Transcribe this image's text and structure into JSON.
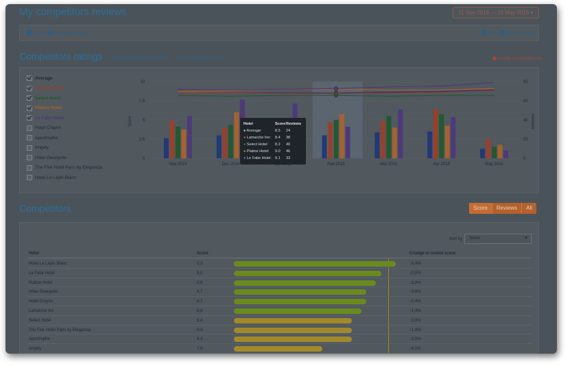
{
  "page": {
    "title": "My competitors reviews",
    "date_range": "11 Nov 2014 — 11 May 2015 ▾"
  },
  "toolbar": {
    "export": "Export",
    "schedule": "Schedule a report",
    "print": "Print",
    "send_email": "Send by email"
  },
  "ratings": {
    "title": "Competitors ratings",
    "read_reviews": "read competitors reviews",
    "topics_summary": "view topics summary",
    "modify_list": "modify competitors list",
    "hotels": [
      {
        "name": "Average",
        "checked": true,
        "color": "#1e2a33"
      },
      {
        "name": "Lamarche Inn",
        "checked": true,
        "color": "#9a3f2b"
      },
      {
        "name": "Select Hotel",
        "checked": true,
        "color": "#1f5a34"
      },
      {
        "name": "Platine Hotel",
        "checked": true,
        "color": "#a8612d"
      },
      {
        "name": "Le Fabe Hotel",
        "checked": true,
        "color": "#4c3a7c"
      },
      {
        "name": "Hotel Crayon",
        "checked": false,
        "color": "#1f2a33"
      },
      {
        "name": "Apostrophe",
        "checked": false,
        "color": "#1f2a33"
      },
      {
        "name": "Angely",
        "checked": false,
        "color": "#1f2a33"
      },
      {
        "name": "Hôtel Georgette",
        "checked": false,
        "color": "#1f2a33"
      },
      {
        "name": "The Five Hotel Paris by Elegancia",
        "checked": false,
        "color": "#1f2a33"
      },
      {
        "name": "Hotel Le Lapin Blanc",
        "checked": false,
        "color": "#1f2a33"
      }
    ]
  },
  "chart_data": {
    "type": "bar",
    "categories": [
      "Nov 2014",
      "Dec 2014",
      "Jan 2015",
      "Feb 2015",
      "Mar 2015",
      "Apr 2015",
      "May 2015"
    ],
    "ylabel": "Score",
    "y2label": "Reviews",
    "ylim": [
      0,
      10
    ],
    "y2lim": [
      0,
      80
    ],
    "yticks": [
      "0",
      "2.5",
      "5",
      "7.5",
      "10"
    ],
    "y2ticks": [
      "0",
      "20",
      "40",
      "60",
      "80"
    ],
    "series": [
      {
        "name": "Average",
        "color": "#1e3a78",
        "values": [
          21,
          24,
          22,
          24,
          27,
          28,
          10
        ]
      },
      {
        "name": "Lamarche Inn",
        "color": "#9a3f2b",
        "values": [
          39,
          32,
          41,
          38,
          39,
          51,
          20
        ]
      },
      {
        "name": "Select Hotel",
        "color": "#1f5a34",
        "values": [
          33,
          35,
          40,
          40,
          44,
          46,
          12
        ]
      },
      {
        "name": "Platine Hotel",
        "color": "#a8612d",
        "values": [
          30,
          48,
          35,
          46,
          32,
          34,
          14
        ]
      },
      {
        "name": "Le Fabe Hotel",
        "color": "#4c3a7c",
        "values": [
          44,
          61,
          57,
          33,
          51,
          43,
          8
        ]
      }
    ],
    "score_lines": [
      {
        "name": "Average",
        "color": "#2a2f78",
        "values": [
          8.4,
          8.5,
          8.5,
          8.5,
          8.6,
          8.7,
          8.9
        ]
      },
      {
        "name": "Lamarche Inn",
        "color": "#9a3f2b",
        "values": [
          8.4,
          8.5,
          8.4,
          8.4,
          8.5,
          8.6,
          8.8
        ]
      },
      {
        "name": "Select Hotel",
        "color": "#1f5a34",
        "values": [
          8.2,
          8.1,
          8.2,
          8.2,
          8.1,
          8.2,
          8.2
        ]
      },
      {
        "name": "Platine Hotel",
        "color": "#a8612d",
        "values": [
          8.7,
          8.8,
          9.0,
          9.0,
          8.9,
          8.9,
          9.1
        ]
      },
      {
        "name": "Le Fabe Hotel",
        "color": "#4c3a7c",
        "values": [
          9.0,
          8.9,
          9.0,
          9.1,
          9.3,
          9.4,
          9.9
        ]
      }
    ],
    "highlight_category": "Feb 2015"
  },
  "tooltip": {
    "headers": [
      "Hotel",
      "Score",
      "Reviews"
    ],
    "rows": [
      {
        "name": "Average:",
        "score": "8.5",
        "reviews": "24",
        "color": "#cfd3d6"
      },
      {
        "name": "Lamarche Inn:",
        "score": "8.4",
        "reviews": "38",
        "color": "#d0603a"
      },
      {
        "name": "Select Hotel:",
        "score": "8.2",
        "reviews": "40",
        "color": "#3b8a50"
      },
      {
        "name": "Platine Hotel:",
        "score": "9.0",
        "reviews": "46",
        "color": "#e08a3a"
      },
      {
        "name": "Le Fabe Hotel:",
        "score": "9.1",
        "reviews": "33",
        "color": "#8a6ad0"
      }
    ]
  },
  "competitors": {
    "title": "Competitors",
    "toggle": [
      "Score",
      "Reviews",
      "All"
    ],
    "active_toggle": "Score",
    "sort_label": "Sort by",
    "sort_value": "Score",
    "columns": [
      "Hotel",
      "Score",
      "Change in review score"
    ],
    "rows": [
      {
        "name": "Hotel Le Lapin Blanc",
        "score": "9,3",
        "score_value": 9.3,
        "change": "↑9,4%",
        "color": "#6b8a1e"
      },
      {
        "name": "Le Fabe Hotel",
        "score": "9,0",
        "score_value": 9.0,
        "change": "↓0,5%",
        "color": "#6b8a1e"
      },
      {
        "name": "Platine Hotel",
        "score": "8,9",
        "score_value": 8.9,
        "change": "↑3,9%",
        "color": "#6b8a1e"
      },
      {
        "name": "Hôtel Georgette",
        "score": "8,7",
        "score_value": 8.7,
        "change": "↑3,6%",
        "color": "#6b8a1e"
      },
      {
        "name": "Hotel Crayon",
        "score": "8,7",
        "score_value": 8.7,
        "change": "↓0,4%",
        "color": "#6b8a1e"
      },
      {
        "name": "Lamarche Inn",
        "score": "8,6",
        "score_value": 8.6,
        "change": "↑1,4%",
        "color": "#6b8a1e"
      },
      {
        "name": "Select Hotel",
        "score": "8,4",
        "score_value": 8.4,
        "change": "↑2,8%",
        "color": "#a08a2a"
      },
      {
        "name": "The Five Hotel Paris by Elegancia",
        "score": "8,4",
        "score_value": 8.4,
        "change": "↑1,9%",
        "color": "#a08a2a"
      },
      {
        "name": "Apostrophe",
        "score": "8,4",
        "score_value": 8.4,
        "change": "↓3,5%",
        "color": "#a08a2a"
      },
      {
        "name": "Angely",
        "score": "7,8",
        "score_value": 7.8,
        "change": "↓6,1%",
        "color": "#a08a2a"
      }
    ]
  }
}
